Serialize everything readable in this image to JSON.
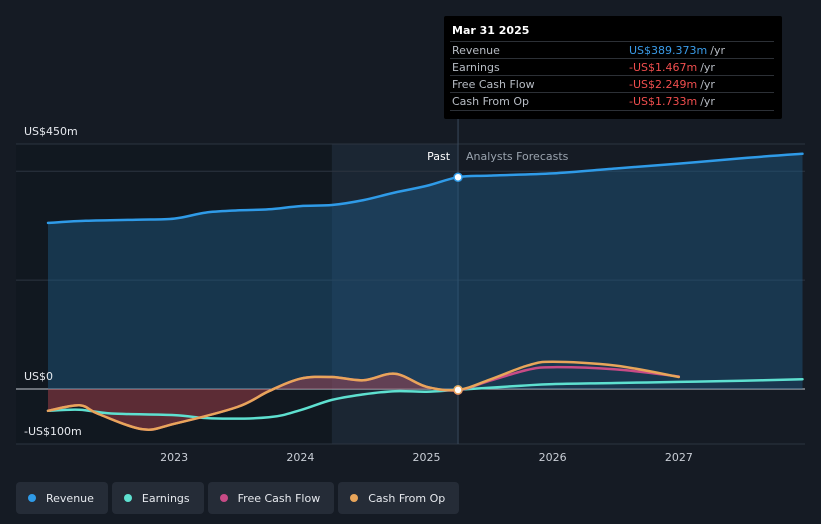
{
  "tooltip": {
    "date": "Mar 31 2025",
    "rows": [
      {
        "name": "Revenue",
        "value": "US$389.373m",
        "unit": "/yr",
        "color": "#3a9be8"
      },
      {
        "name": "Earnings",
        "value": "-US$1.467m",
        "unit": "/yr",
        "color": "#f04e4e"
      },
      {
        "name": "Free Cash Flow",
        "value": "-US$2.249m",
        "unit": "/yr",
        "color": "#f04e4e"
      },
      {
        "name": "Cash From Op",
        "value": "-US$1.733m",
        "unit": "/yr",
        "color": "#f04e4e"
      }
    ]
  },
  "labels": {
    "past": "Past",
    "forecast": "Analysts Forecasts"
  },
  "legend": [
    {
      "name": "Revenue",
      "color": "#2f9be8"
    },
    {
      "name": "Earnings",
      "color": "#5ee0d0"
    },
    {
      "name": "Free Cash Flow",
      "color": "#c84b86"
    },
    {
      "name": "Cash From Op",
      "color": "#e8a55a"
    }
  ],
  "chart_data": {
    "type": "line",
    "y_tick_labels": [
      "US$450m",
      "US$0",
      "-US$100m"
    ],
    "x_tick_labels": [
      "2023",
      "2024",
      "2025",
      "2026",
      "2027"
    ],
    "ylim": [
      -100,
      450
    ],
    "xlim": [
      2022.0,
      2028.0
    ],
    "divider_x": 2025.25,
    "shaded_past_from": 2024.25,
    "series": [
      {
        "name": "Revenue",
        "color": "#2f9be8",
        "points": [
          [
            2022.0,
            305
          ],
          [
            2022.3,
            309
          ],
          [
            2022.7,
            311
          ],
          [
            2023.0,
            313
          ],
          [
            2023.25,
            324
          ],
          [
            2023.5,
            328
          ],
          [
            2023.75,
            330
          ],
          [
            2024.0,
            336
          ],
          [
            2024.25,
            338
          ],
          [
            2024.5,
            347
          ],
          [
            2024.75,
            361
          ],
          [
            2025.0,
            373
          ],
          [
            2025.25,
            389
          ],
          [
            2025.5,
            392
          ],
          [
            2026.0,
            396
          ],
          [
            2026.5,
            405
          ],
          [
            2027.0,
            414
          ],
          [
            2027.5,
            424
          ],
          [
            2027.98,
            432
          ]
        ]
      },
      {
        "name": "Earnings",
        "color": "#5ee0d0",
        "points": [
          [
            2022.0,
            -40
          ],
          [
            2022.25,
            -38
          ],
          [
            2022.5,
            -45
          ],
          [
            2023.0,
            -48
          ],
          [
            2023.3,
            -54
          ],
          [
            2023.75,
            -52
          ],
          [
            2024.0,
            -39
          ],
          [
            2024.25,
            -20
          ],
          [
            2024.5,
            -10
          ],
          [
            2024.75,
            -4
          ],
          [
            2025.0,
            -5
          ],
          [
            2025.25,
            -1.5
          ],
          [
            2025.75,
            6
          ],
          [
            2026.0,
            9
          ],
          [
            2026.5,
            11
          ],
          [
            2027.0,
            13
          ],
          [
            2027.5,
            15
          ],
          [
            2027.98,
            18
          ]
        ]
      },
      {
        "name": "Free Cash Flow",
        "color": "#c84b86",
        "points": [
          [
            2022.0,
            -40
          ],
          [
            2022.25,
            -30
          ],
          [
            2022.4,
            -46
          ],
          [
            2022.75,
            -74
          ],
          [
            2023.0,
            -64
          ],
          [
            2023.5,
            -33
          ],
          [
            2023.75,
            -4
          ],
          [
            2024.0,
            19
          ],
          [
            2024.25,
            22
          ],
          [
            2024.5,
            16
          ],
          [
            2024.75,
            28
          ],
          [
            2025.0,
            4
          ],
          [
            2025.25,
            -2.2
          ],
          [
            2025.5,
            15
          ],
          [
            2025.8,
            35
          ],
          [
            2026.0,
            40
          ],
          [
            2026.5,
            36
          ],
          [
            2027.0,
            23
          ]
        ]
      },
      {
        "name": "Cash From Op",
        "color": "#e8a55a",
        "points": [
          [
            2022.0,
            -40
          ],
          [
            2022.25,
            -30
          ],
          [
            2022.4,
            -46
          ],
          [
            2022.75,
            -74
          ],
          [
            2023.0,
            -64
          ],
          [
            2023.5,
            -33
          ],
          [
            2023.75,
            -4
          ],
          [
            2024.0,
            19
          ],
          [
            2024.25,
            22
          ],
          [
            2024.5,
            16
          ],
          [
            2024.75,
            28
          ],
          [
            2025.0,
            4
          ],
          [
            2025.25,
            -1.7
          ],
          [
            2025.5,
            17
          ],
          [
            2025.8,
            43
          ],
          [
            2026.0,
            50
          ],
          [
            2026.5,
            43
          ],
          [
            2027.0,
            22
          ]
        ]
      }
    ]
  }
}
